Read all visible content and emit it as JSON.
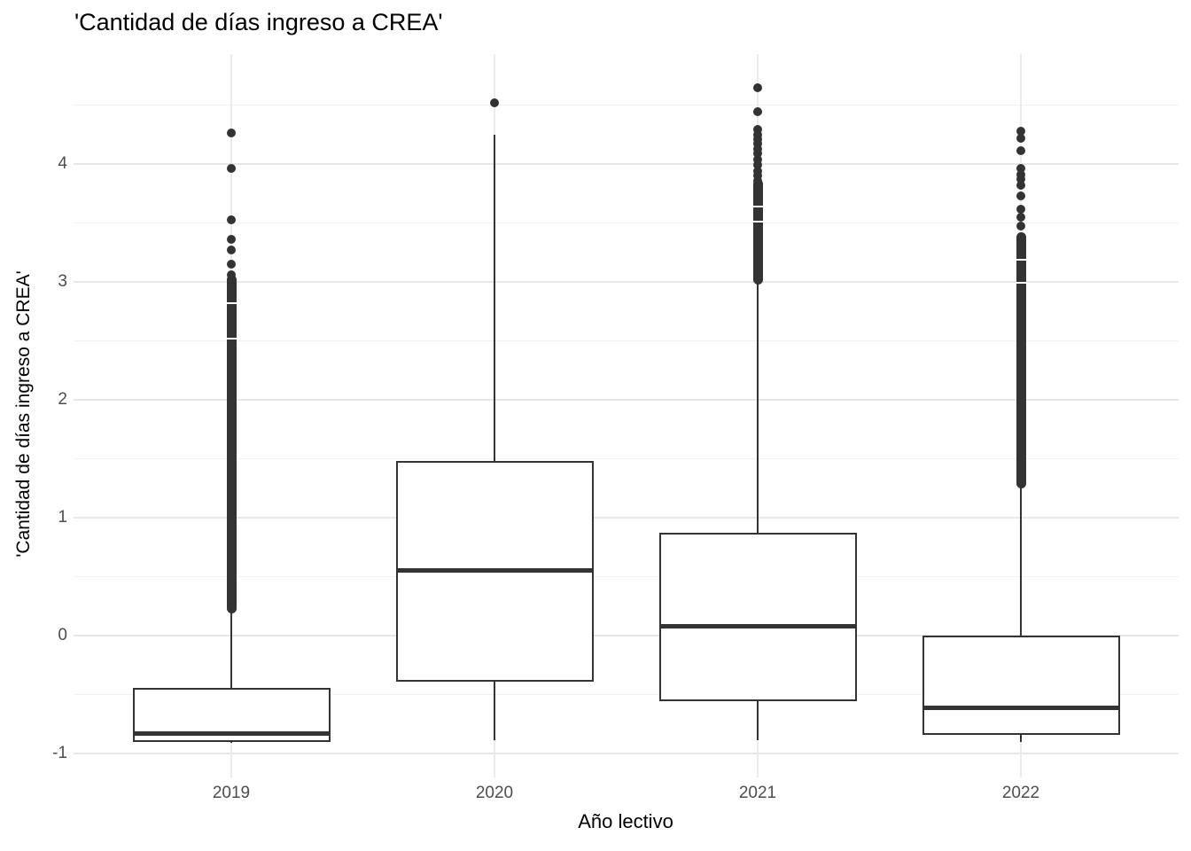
{
  "page": {
    "background": "#ffffff"
  },
  "chart_data": {
    "type": "boxplot",
    "title": "'Cantidad de días ingreso a CREA'",
    "xlabel": "Año lectivo",
    "ylabel": "'Cantidad de días ingreso a CREA'",
    "categories": [
      "2019",
      "2020",
      "2021",
      "2022"
    ],
    "y_ticks": [
      -1,
      0,
      1,
      2,
      3,
      4
    ],
    "y_minor_ticks": [
      -0.5,
      0.5,
      1.5,
      2.5,
      3.5,
      4.5
    ],
    "ylim": [
      -1.2,
      4.93
    ],
    "grid": "horizontal major+minor and vertical category gridlines, light grey on white",
    "legend": "none",
    "colors": {
      "box_stroke": "#333333",
      "box_fill": "#ffffff",
      "outlier": "#333333",
      "grid_major": "#e7e7e7",
      "grid_minor": "#f2f2f2",
      "tick_label": "#4d4d4d",
      "title": "#000000",
      "background": "#ffffff"
    },
    "series": [
      {
        "category": "2019",
        "q1": -0.9,
        "median": -0.83,
        "q3": -0.44,
        "whisker_low": -0.91,
        "whisker_high": 0.22,
        "outlier_dense": [
          {
            "from": 0.23,
            "to": 3.02,
            "gaps": [
              2.52,
              2.82
            ]
          }
        ],
        "outlier_points": [
          3.06,
          3.15,
          3.27,
          3.36,
          3.53,
          3.96,
          4.26
        ]
      },
      {
        "category": "2020",
        "q1": -0.39,
        "median": 0.55,
        "q3": 1.48,
        "whisker_low": -0.89,
        "whisker_high": 4.25,
        "outlier_dense": [],
        "outlier_points": [
          4.52
        ]
      },
      {
        "category": "2021",
        "q1": -0.56,
        "median": 0.08,
        "q3": 0.87,
        "whisker_low": -0.89,
        "whisker_high": 3.0,
        "outlier_dense": [
          {
            "from": 3.02,
            "to": 3.83,
            "gaps": [
              3.51,
              3.64
            ]
          }
        ],
        "outlier_points": [
          3.86,
          3.9,
          3.94,
          3.99,
          4.04,
          4.09,
          4.13,
          4.17,
          4.21,
          4.25,
          4.29,
          4.44,
          4.65
        ]
      },
      {
        "category": "2022",
        "q1": -0.84,
        "median": -0.61,
        "q3": 0.0,
        "whisker_low": -0.9,
        "whisker_high": 1.27,
        "outlier_dense": [
          {
            "from": 1.29,
            "to": 3.38,
            "gaps": [
              2.99,
              3.19
            ]
          }
        ],
        "outlier_points": [
          3.47,
          3.55,
          3.62,
          3.73,
          3.82,
          3.87,
          3.91,
          3.96,
          4.11,
          4.22,
          4.28
        ]
      }
    ]
  }
}
